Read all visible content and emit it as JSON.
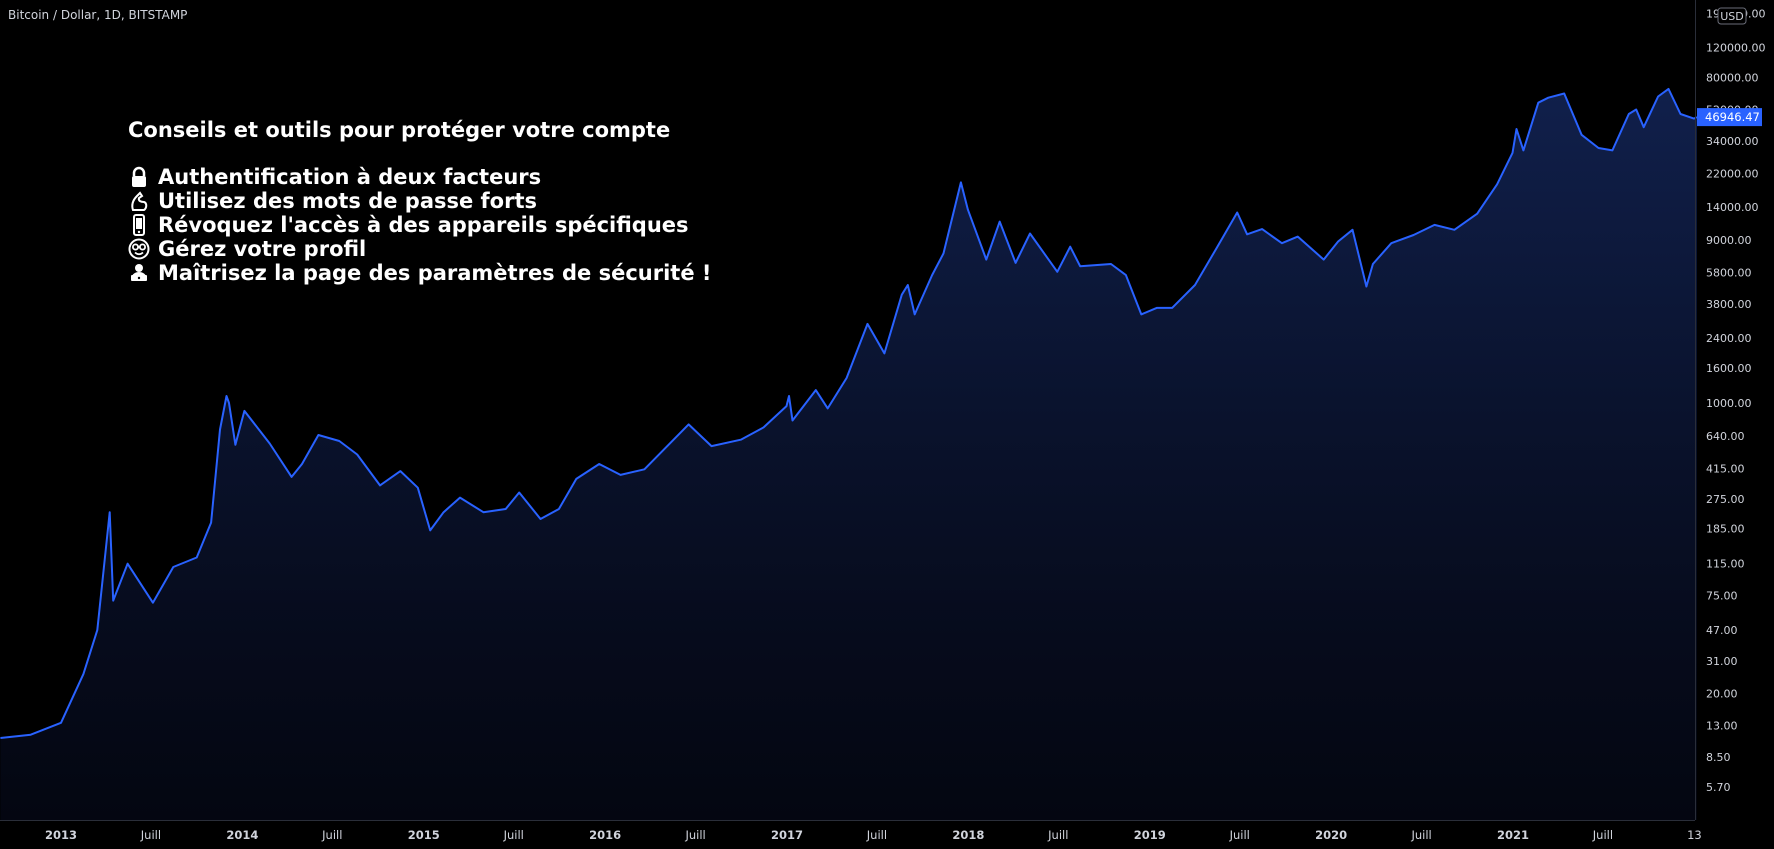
{
  "header": {
    "symbol_title": "Bitcoin / Dollar, 1D, BITSTAMP"
  },
  "tips": {
    "title": "Conseils et outils pour protéger votre compte",
    "items": [
      {
        "icon": "lock-icon",
        "text": "Authentification à deux facteurs"
      },
      {
        "icon": "flexed-biceps-icon",
        "text": "Utilisez des mots de passe forts"
      },
      {
        "icon": "phone-icon",
        "text": "Révoquez l'accès à des appareils spécifiques"
      },
      {
        "icon": "nerd-face-icon",
        "text": "Gérez votre profil"
      },
      {
        "icon": "laptop-user-icon",
        "text": "Maîtrisez la page des paramètres de sécurité !"
      }
    ]
  },
  "colors": {
    "background": "#000000",
    "line": "#2962ff",
    "price_tag": "#2962ff",
    "axis_text": "#d1d4dc"
  },
  "chart_data": {
    "type": "area",
    "title": "Bitcoin / Dollar, 1D, BITSTAMP",
    "series": [
      {
        "name": "",
        "x": [
          "2012-09-01",
          "2012-11-01",
          "2013-01-01",
          "2013-02-15",
          "2013-03-15",
          "2013-04-09",
          "2013-04-16",
          "2013-05-15",
          "2013-07-05",
          "2013-08-15",
          "2013-10-01",
          "2013-10-30",
          "2013-11-17",
          "2013-11-30",
          "2013-12-05",
          "2013-12-18",
          "2014-01-05",
          "2014-02-25",
          "2014-04-10",
          "2014-05-01",
          "2014-06-03",
          "2014-07-15",
          "2014-08-20",
          "2014-10-05",
          "2014-11-15",
          "2014-12-20",
          "2015-01-14",
          "2015-02-10",
          "2015-03-15",
          "2015-05-01",
          "2015-06-15",
          "2015-07-12",
          "2015-08-24",
          "2015-09-30",
          "2015-11-04",
          "2015-12-20",
          "2016-02-01",
          "2016-03-20",
          "2016-06-17",
          "2016-08-02",
          "2016-09-30",
          "2016-11-15",
          "2016-12-31",
          "2017-01-05",
          "2017-01-12",
          "2017-02-28",
          "2017-03-24",
          "2017-05-01",
          "2017-06-12",
          "2017-07-16",
          "2017-08-20",
          "2017-09-01",
          "2017-09-15",
          "2017-10-20",
          "2017-11-12",
          "2017-12-17",
          "2017-12-31",
          "2018-02-06",
          "2018-03-05",
          "2018-04-06",
          "2018-05-05",
          "2018-06-29",
          "2018-07-25",
          "2018-08-14",
          "2018-10-15",
          "2018-11-14",
          "2018-12-15",
          "2019-01-15",
          "2019-02-15",
          "2019-04-02",
          "2019-05-15",
          "2019-06-26",
          "2019-07-16",
          "2019-08-15",
          "2019-09-24",
          "2019-10-26",
          "2019-12-17",
          "2020-01-15",
          "2020-02-13",
          "2020-03-12",
          "2020-03-25",
          "2020-05-01",
          "2020-06-15",
          "2020-07-27",
          "2020-09-05",
          "2020-10-21",
          "2020-11-30",
          "2020-12-31",
          "2021-01-08",
          "2021-01-22",
          "2021-02-21",
          "2021-03-13",
          "2021-04-14",
          "2021-05-19",
          "2021-06-22",
          "2021-07-20",
          "2021-08-22",
          "2021-09-06",
          "2021-09-21",
          "2021-10-20",
          "2021-11-10",
          "2021-12-04",
          "2021-12-31",
          "2022-01-06"
        ],
        "y": [
          11,
          11.5,
          13.5,
          26,
          47,
          230,
          70,
          115,
          68,
          110,
          125,
          200,
          700,
          1100,
          1000,
          570,
          900,
          580,
          370,
          440,
          650,
          600,
          500,
          330,
          400,
          320,
          180,
          230,
          280,
          230,
          240,
          300,
          210,
          240,
          360,
          440,
          380,
          410,
          750,
          560,
          610,
          720,
          960,
          1100,
          790,
          1190,
          930,
          1400,
          2900,
          1950,
          4300,
          4900,
          3300,
          5600,
          7500,
          19500,
          13500,
          6900,
          11500,
          6600,
          9800,
          5850,
          8200,
          6300,
          6500,
          5600,
          3300,
          3600,
          3600,
          4900,
          8000,
          13000,
          9700,
          10400,
          8600,
          9400,
          6900,
          8800,
          10300,
          4800,
          6500,
          8600,
          9600,
          11000,
          10300,
          12800,
          19000,
          29000,
          40000,
          30000,
          57000,
          61000,
          64500,
          37000,
          31000,
          30000,
          49000,
          52000,
          41000,
          62000,
          68700,
          49000,
          46000,
          46946
        ]
      }
    ],
    "y_axis": {
      "scale": "log",
      "ticks": [
        5.7,
        8.5,
        13.0,
        20.0,
        31.0,
        47.0,
        75.0,
        115.0,
        185.0,
        275.0,
        415.0,
        640.0,
        1000.0,
        1600.0,
        2400.0,
        3800.0,
        5800.0,
        9000.0,
        14000.0,
        22000.0,
        34000.0,
        52000.0,
        80000.0,
        120000.0,
        190000.0
      ],
      "tick_labels": [
        "5.70",
        "8.50",
        "13.00",
        "20.00",
        "31.00",
        "47.00",
        "75.00",
        "115.00",
        "185.00",
        "275.00",
        "415.00",
        "640.00",
        "1000.00",
        "1600.00",
        "2400.00",
        "3800.00",
        "5800.00",
        "9000.00",
        "14000.00",
        "22000.00",
        "34000.00",
        "52000.00",
        "80000.00",
        "120000.00",
        "190000.00"
      ],
      "unit": "USD",
      "last_value": 46946.47,
      "last_value_label": "46946.47"
    },
    "x_axis": {
      "ticks": [
        {
          "date": "2013-01-01",
          "label": "2013",
          "year": true
        },
        {
          "date": "2013-07-01",
          "label": "Juill",
          "year": false
        },
        {
          "date": "2014-01-01",
          "label": "2014",
          "year": true
        },
        {
          "date": "2014-07-01",
          "label": "Juill",
          "year": false
        },
        {
          "date": "2015-01-01",
          "label": "2015",
          "year": true
        },
        {
          "date": "2015-07-01",
          "label": "Juill",
          "year": false
        },
        {
          "date": "2016-01-01",
          "label": "2016",
          "year": true
        },
        {
          "date": "2016-07-01",
          "label": "Juill",
          "year": false
        },
        {
          "date": "2017-01-01",
          "label": "2017",
          "year": true
        },
        {
          "date": "2017-07-01",
          "label": "Juill",
          "year": false
        },
        {
          "date": "2018-01-01",
          "label": "2018",
          "year": true
        },
        {
          "date": "2018-07-01",
          "label": "Juill",
          "year": false
        },
        {
          "date": "2019-01-01",
          "label": "2019",
          "year": true
        },
        {
          "date": "2019-07-01",
          "label": "Juill",
          "year": false
        },
        {
          "date": "2020-01-01",
          "label": "2020",
          "year": true
        },
        {
          "date": "2020-07-01",
          "label": "Juill",
          "year": false
        },
        {
          "date": "2021-01-01",
          "label": "2021",
          "year": true
        },
        {
          "date": "2021-07-01",
          "label": "Juill",
          "year": false
        },
        {
          "date": "2022-01-01",
          "label": "13",
          "year": false
        }
      ]
    },
    "grid": false
  }
}
